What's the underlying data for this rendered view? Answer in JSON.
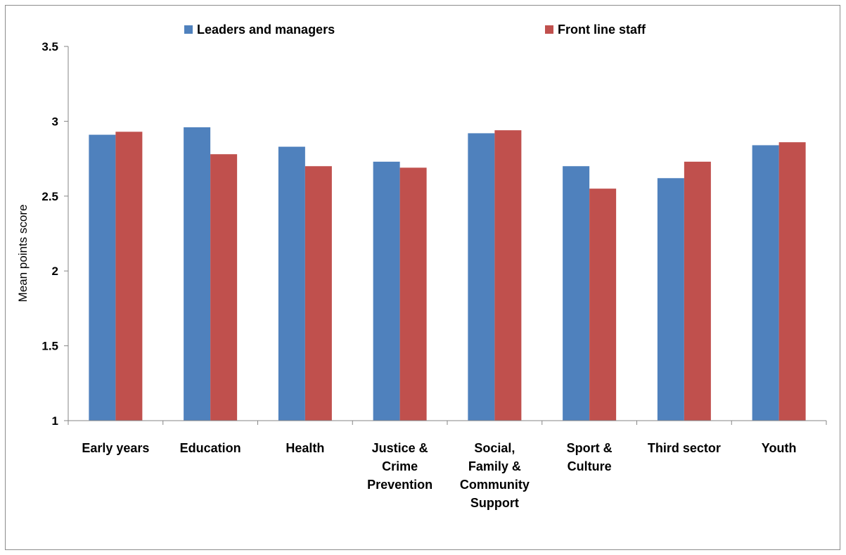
{
  "chart_data": {
    "type": "bar",
    "title": "",
    "xlabel": "",
    "ylabel": "Mean points score",
    "ylim": [
      1,
      3.5
    ],
    "yticks": [
      "1",
      "1.5",
      "2",
      "2.5",
      "3",
      "3.5"
    ],
    "legend_position": "top",
    "grid": false,
    "categories": [
      [
        "Early years"
      ],
      [
        "Education"
      ],
      [
        "Health"
      ],
      [
        "Justice &",
        "Crime",
        "Prevention"
      ],
      [
        "Social,",
        "Family &",
        "Community",
        "Support"
      ],
      [
        "Sport &",
        "Culture"
      ],
      [
        "Third sector"
      ],
      [
        "Youth"
      ]
    ],
    "series": [
      {
        "name": "Leaders and managers",
        "color": "#4f81bd",
        "values": [
          2.91,
          2.96,
          2.83,
          2.73,
          2.92,
          2.7,
          2.62,
          2.84
        ]
      },
      {
        "name": "Front line staff",
        "color": "#c0504d",
        "values": [
          2.93,
          2.78,
          2.7,
          2.69,
          2.94,
          2.55,
          2.73,
          2.86
        ]
      }
    ]
  }
}
